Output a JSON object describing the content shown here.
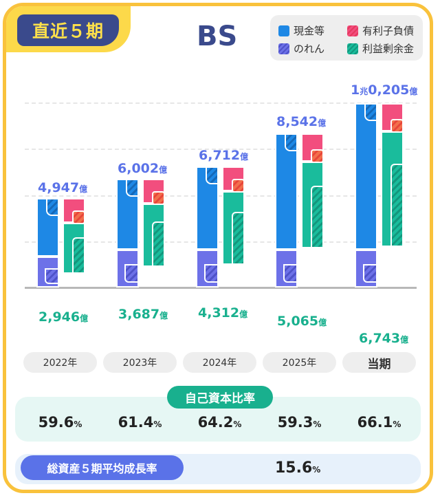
{
  "badge": "直近５期",
  "colors": {
    "cash": "#1e88e5",
    "goodwill": "#6d71e8",
    "debt": "#f24e7e",
    "retained": "#1abc9c",
    "debt_patch": "#f26f4c"
  },
  "chart_data": {
    "type": "bar",
    "title": "BS",
    "legend": [
      {
        "key": "cash",
        "label": "現金等"
      },
      {
        "key": "debt",
        "label": "有利子負債"
      },
      {
        "key": "goodwill",
        "label": "のれん"
      },
      {
        "key": "retained",
        "label": "利益剰余金"
      }
    ],
    "categories": [
      "2022年",
      "2023年",
      "2024年",
      "2025年",
      "当期"
    ],
    "unit": "億",
    "total_assets": [
      4947,
      6002,
      6712,
      8542,
      10205
    ],
    "retained_earnings": [
      2946,
      3687,
      4312,
      5065,
      6743
    ],
    "total_labels": [
      {
        "num": "4,947",
        "unit": "億"
      },
      {
        "num": "6,002",
        "unit": "億"
      },
      {
        "num": "6,712",
        "unit": "億"
      },
      {
        "num": "8,542",
        "unit": "億"
      },
      {
        "prefix": "1",
        "mid": "兆",
        "num": "0,205",
        "unit": "億"
      }
    ],
    "retained_labels": [
      {
        "num": "2,946",
        "unit": "億"
      },
      {
        "num": "3,687",
        "unit": "億"
      },
      {
        "num": "4,312",
        "unit": "億"
      },
      {
        "num": "5,065",
        "unit": "億"
      },
      {
        "num": "6,743",
        "unit": "億"
      }
    ]
  },
  "equity_ratio": {
    "title": "自己資本比率",
    "values": [
      {
        "num": "59.6",
        "unit": "%"
      },
      {
        "num": "61.4",
        "unit": "%"
      },
      {
        "num": "64.2",
        "unit": "%"
      },
      {
        "num": "59.3",
        "unit": "%"
      },
      {
        "num": "66.1",
        "unit": "%"
      }
    ]
  },
  "growth": {
    "title": "総資産５期平均成長率",
    "num": "15.6",
    "unit": "%"
  }
}
